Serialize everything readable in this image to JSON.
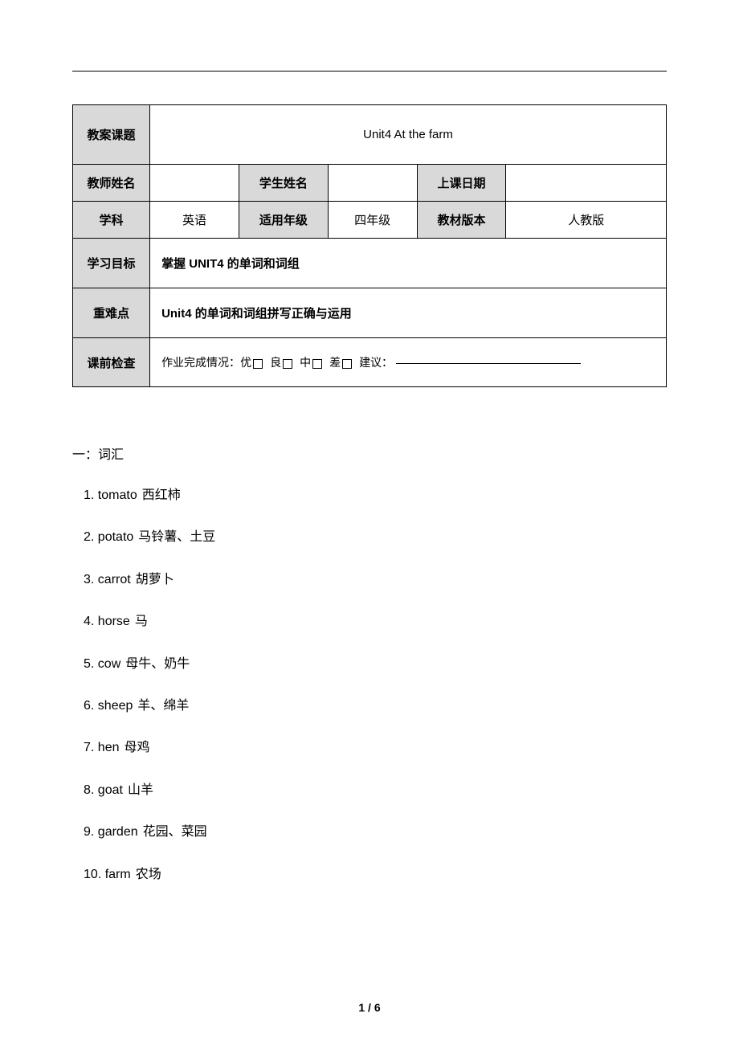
{
  "table": {
    "row1": {
      "label": "教案课题",
      "value": "Unit4 At the farm"
    },
    "row2": {
      "l1": "教师姓名",
      "v1": "",
      "l2": "学生姓名",
      "v2": "",
      "l3": "上课日期",
      "v3": ""
    },
    "row3": {
      "l1": "学科",
      "v1": "英语",
      "l2": "适用年级",
      "v2": "四年级",
      "l3": "教材版本",
      "v3": "人教版"
    },
    "row4": {
      "label": "学习目标",
      "value": "掌握 UNIT4 的单词和词组"
    },
    "row5": {
      "label": "重难点",
      "value": "Unit4 的单词和词组拼写正确与运用"
    },
    "row6": {
      "label": "课前检查",
      "prefix": "作业完成情况：",
      "opt1": "优",
      "opt2": "良",
      "opt3": "中",
      "opt4": "差",
      "suggest": "建议："
    }
  },
  "section_heading": "一：词汇",
  "vocab": [
    {
      "n": "1.",
      "en": "tomato",
      "cn": "西红柿"
    },
    {
      "n": "2.",
      "en": "potato",
      "cn": "马铃薯、土豆"
    },
    {
      "n": "3.",
      "en": "carrot",
      "cn": "胡萝卜"
    },
    {
      "n": "4.",
      "en": "horse",
      "cn": "马"
    },
    {
      "n": "5.",
      "en": "cow",
      "cn": "母牛、奶牛"
    },
    {
      "n": "6.",
      "en": "sheep",
      "cn": "羊、绵羊"
    },
    {
      "n": "7.",
      "en": "hen",
      "cn": "母鸡"
    },
    {
      "n": "8.",
      "en": "goat",
      "cn": "山羊"
    },
    {
      "n": "9.",
      "en": "garden",
      "cn": "花园、菜园"
    },
    {
      "n": "10.",
      "en": "farm",
      "cn": "农场"
    }
  ],
  "page_number": "1 / 6"
}
